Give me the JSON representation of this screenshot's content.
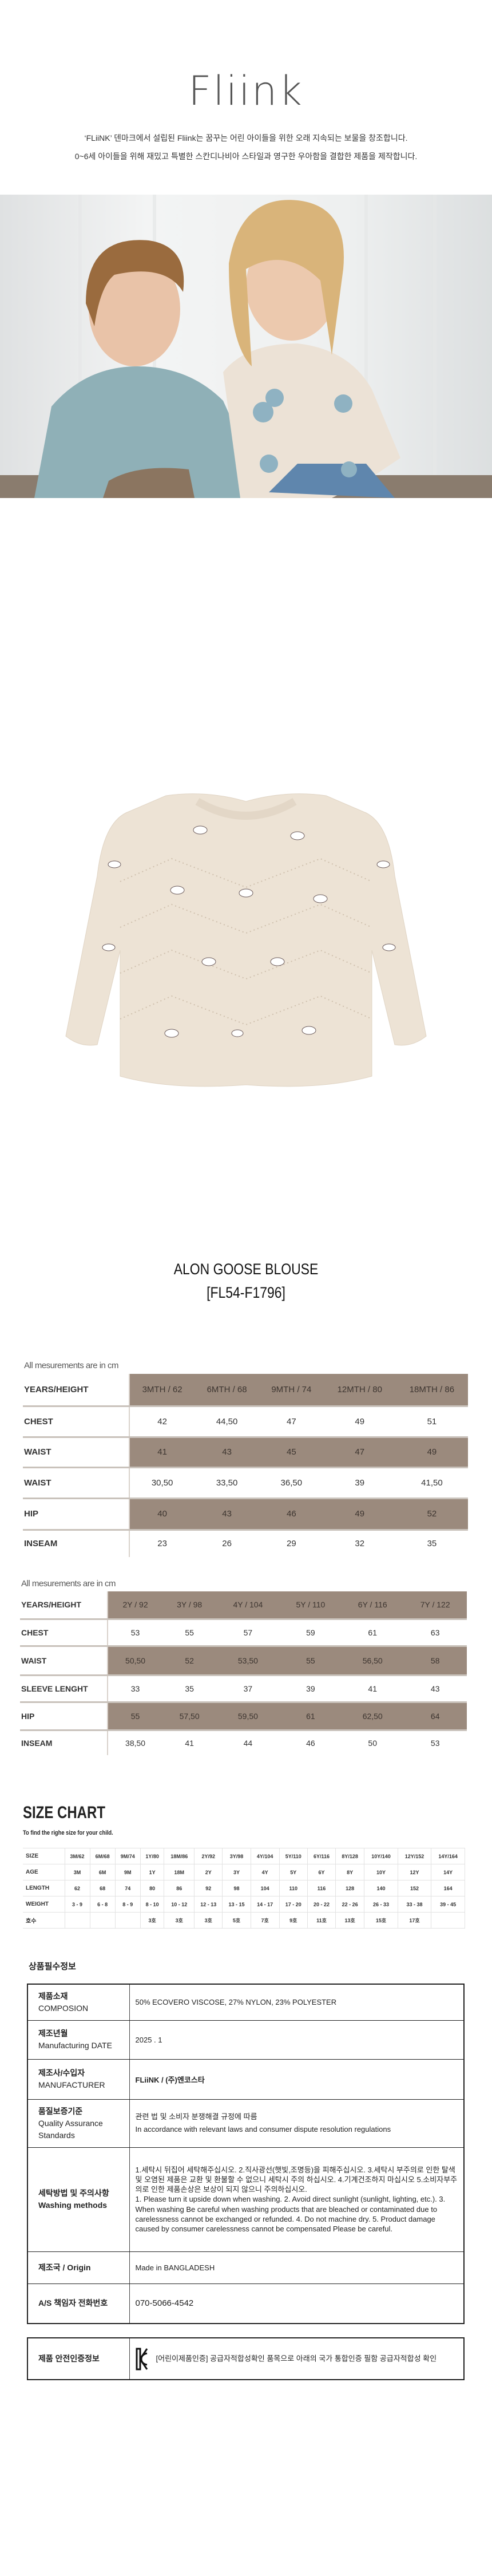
{
  "brand": {
    "logo": "Fliink"
  },
  "intro": {
    "line1": "‘FLiiNK’ 덴마크에서 설립된 Fliink는 꿈꾸는 어린 아이들을 위한 오래 지속되는 보물을 창조합니다.",
    "line2": "0~6세 아이들을 위해 재밌고 특별한 스칸디나비아 스타일과 영구한 우아함을 결합한 제품을 제작합니다."
  },
  "product": {
    "name": "ALON GOOSE BLOUSE",
    "code": "[FL54-F1796]"
  },
  "colors": {
    "table_shade": "#9b8a7d",
    "logo_accent": "#b0606a",
    "sweater": "#ede3d5"
  },
  "measure_table_1": {
    "note": "All mesurements are in cm",
    "header_label": "YEARS/HEIGHT",
    "columns": [
      "3MTH / 62",
      "6MTH / 68",
      "9MTH / 74",
      "12MTH / 80",
      "18MTH / 86"
    ],
    "rows": [
      {
        "label": "CHEST",
        "values": [
          "42",
          "44,50",
          "47",
          "49",
          "51"
        ]
      },
      {
        "label": "WAIST",
        "values": [
          "41",
          "43",
          "45",
          "47",
          "49"
        ]
      },
      {
        "label": "WAIST",
        "values": [
          "30,50",
          "33,50",
          "36,50",
          "39",
          "41,50"
        ]
      },
      {
        "label": "HIP",
        "values": [
          "40",
          "43",
          "46",
          "49",
          "52"
        ]
      },
      {
        "label": "INSEAM",
        "values": [
          "23",
          "26",
          "29",
          "32",
          "35"
        ]
      }
    ]
  },
  "measure_table_2": {
    "note": "All mesurements are in cm",
    "header_label": "YEARS/HEIGHT",
    "columns": [
      "2Y / 92",
      "3Y / 98",
      "4Y / 104",
      "5Y / 110",
      "6Y / 116",
      "7Y / 122"
    ],
    "rows": [
      {
        "label": "CHEST",
        "values": [
          "53",
          "55",
          "57",
          "59",
          "61",
          "63"
        ]
      },
      {
        "label": "WAIST",
        "values": [
          "50,50",
          "52",
          "53,50",
          "55",
          "56,50",
          "58"
        ]
      },
      {
        "label": "SLEEVE LENGHT",
        "values": [
          "33",
          "35",
          "37",
          "39",
          "41",
          "43"
        ]
      },
      {
        "label": "HIP",
        "values": [
          "55",
          "57,50",
          "59,50",
          "61",
          "62,50",
          "64"
        ]
      },
      {
        "label": "INSEAM",
        "values": [
          "38,50",
          "41",
          "44",
          "46",
          "50",
          "53"
        ]
      }
    ]
  },
  "size_chart": {
    "title": "SIZE CHART",
    "subtitle": "To find the righe size for your child.",
    "rows": [
      {
        "label": "SIZE",
        "values": [
          "3M/62",
          "6M/68",
          "9M/74",
          "1Y/80",
          "18M/86",
          "2Y/92",
          "3Y/98",
          "4Y/104",
          "5Y/110",
          "6Y/116",
          "8Y/128",
          "10Y/140",
          "12Y/152",
          "14Y/164"
        ]
      },
      {
        "label": "AGE",
        "values": [
          "3M",
          "6M",
          "9M",
          "1Y",
          "18M",
          "2Y",
          "3Y",
          "4Y",
          "5Y",
          "6Y",
          "8Y",
          "10Y",
          "12Y",
          "14Y"
        ]
      },
      {
        "label": "LENGTH",
        "values": [
          "62",
          "68",
          "74",
          "80",
          "86",
          "92",
          "98",
          "104",
          "110",
          "116",
          "128",
          "140",
          "152",
          "164"
        ]
      },
      {
        "label": "WEIGHT",
        "values": [
          "3 - 9",
          "6 - 8",
          "8 - 9",
          "8 - 10",
          "10 - 12",
          "12 - 13",
          "13 - 15",
          "14 - 17",
          "17 - 20",
          "20 - 22",
          "22 - 26",
          "26 - 33",
          "33 - 38",
          "39 - 45"
        ]
      },
      {
        "label": "호수",
        "values": [
          "",
          "",
          "",
          "3호",
          "3호",
          "3호",
          "5호",
          "7호",
          "9호",
          "11호",
          "13호",
          "15호",
          "17호",
          ""
        ]
      }
    ]
  },
  "info": {
    "heading": "상품필수정보",
    "rows": [
      {
        "ko": "제품소재",
        "en": "COMPOSION",
        "value": "50% ECOVERO VISCOSE, 27% NYLON, 23% POLYESTER"
      },
      {
        "ko": "제조년월",
        "en": "Manufacturing DATE",
        "value": "2025 . 1"
      },
      {
        "ko": "제조사/수입자",
        "en": "MANUFACTURER",
        "value": "FLiiNK / (주)엔코스타"
      },
      {
        "ko": "품질보증기준",
        "en": "Quality Assurance Standards",
        "value": "관련 법 및 소비자 분쟁해결 규정에 따름",
        "value_en": "In accordance with relevant laws and consumer dispute resolution regulations"
      },
      {
        "ko": "세탁방법 및 주의사항",
        "en": "Washing methods",
        "value": "1.세탁시 뒤집어 세탁해주십시오. 2.직사광선(햇빛,조명등)을 피해주십시오. 3.세탁시 부주의로 인한 탈색및 오염된 제품은 교환 및 환불할 수 없으니 세탁시 주의 하십시오. 4.기계건조하지 마십시오 5.소비자부주의로 인한 제품손상은 보상이 되지 않으니 주의하십시오.",
        "value_en": "1. Please turn it upside down when washing. 2. Avoid direct sunlight (sunlight, lighting, etc.). 3. When washing Be careful when washing products that are bleached or contaminated due to carelessness cannot be exchanged or refunded. 4. Do not machine dry. 5. Product damage caused by consumer carelessness cannot be compensated Please be careful."
      },
      {
        "ko": "제조국 / Origin",
        "value": "Made in BANGLADESH"
      },
      {
        "ko": "A/S 책임자 전화번호",
        "value": "070-5066-4542"
      }
    ],
    "safety": {
      "label": "제품 안전인증정보",
      "value": "[어린이제품인증] 공급자적합성확인 품목으로 아래의 국가 통합인증 필함 공급자적합성 확인",
      "mark": "KC"
    }
  }
}
